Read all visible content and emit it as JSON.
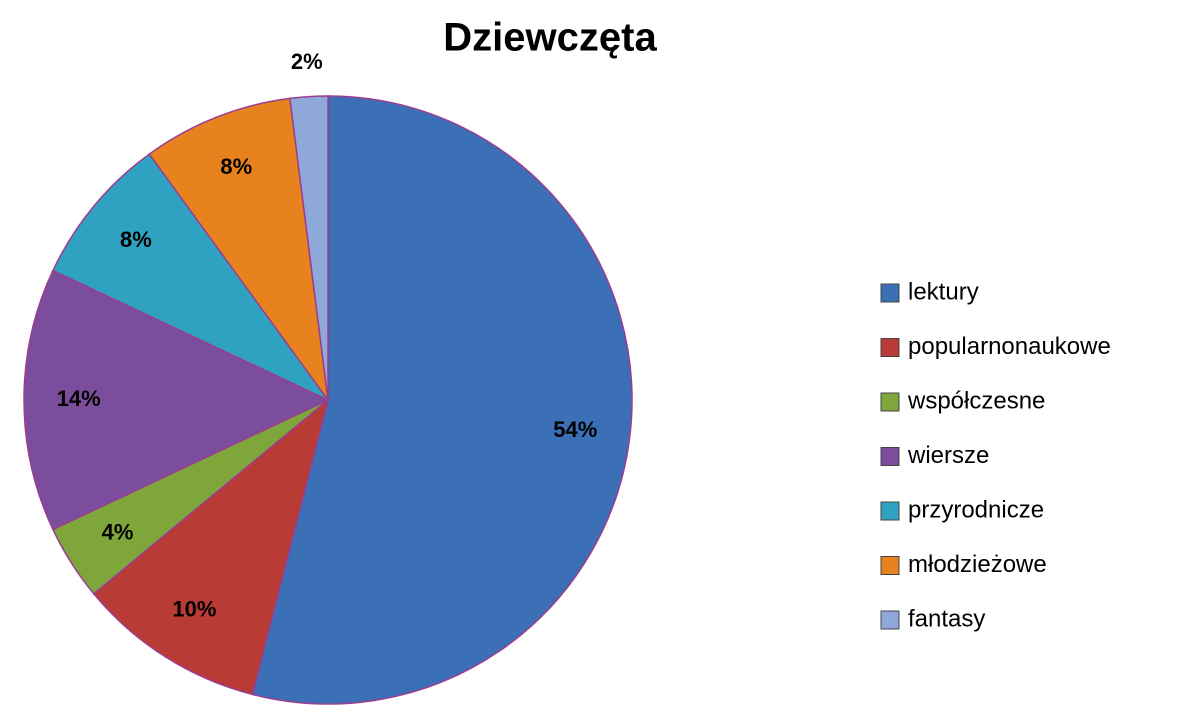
{
  "chart_data": {
    "type": "pie",
    "title": "Dziewczęta",
    "categories": [
      "lektury",
      "popularnonaukowe",
      "współczesne",
      "wiersze",
      "przyrodnicze",
      "młodzieżowe",
      "fantasy"
    ],
    "values": [
      54,
      10,
      4,
      14,
      8,
      8,
      2
    ],
    "value_labels": [
      "54%",
      "10%",
      "4%",
      "14%",
      "8%",
      "8%",
      "2%"
    ],
    "colors": [
      "#3b6fb6",
      "#b93b36",
      "#7fa63b",
      "#7a4e9c",
      "#2fa2c1",
      "#e7821f",
      "#8ea8d9"
    ],
    "legend": "right"
  }
}
